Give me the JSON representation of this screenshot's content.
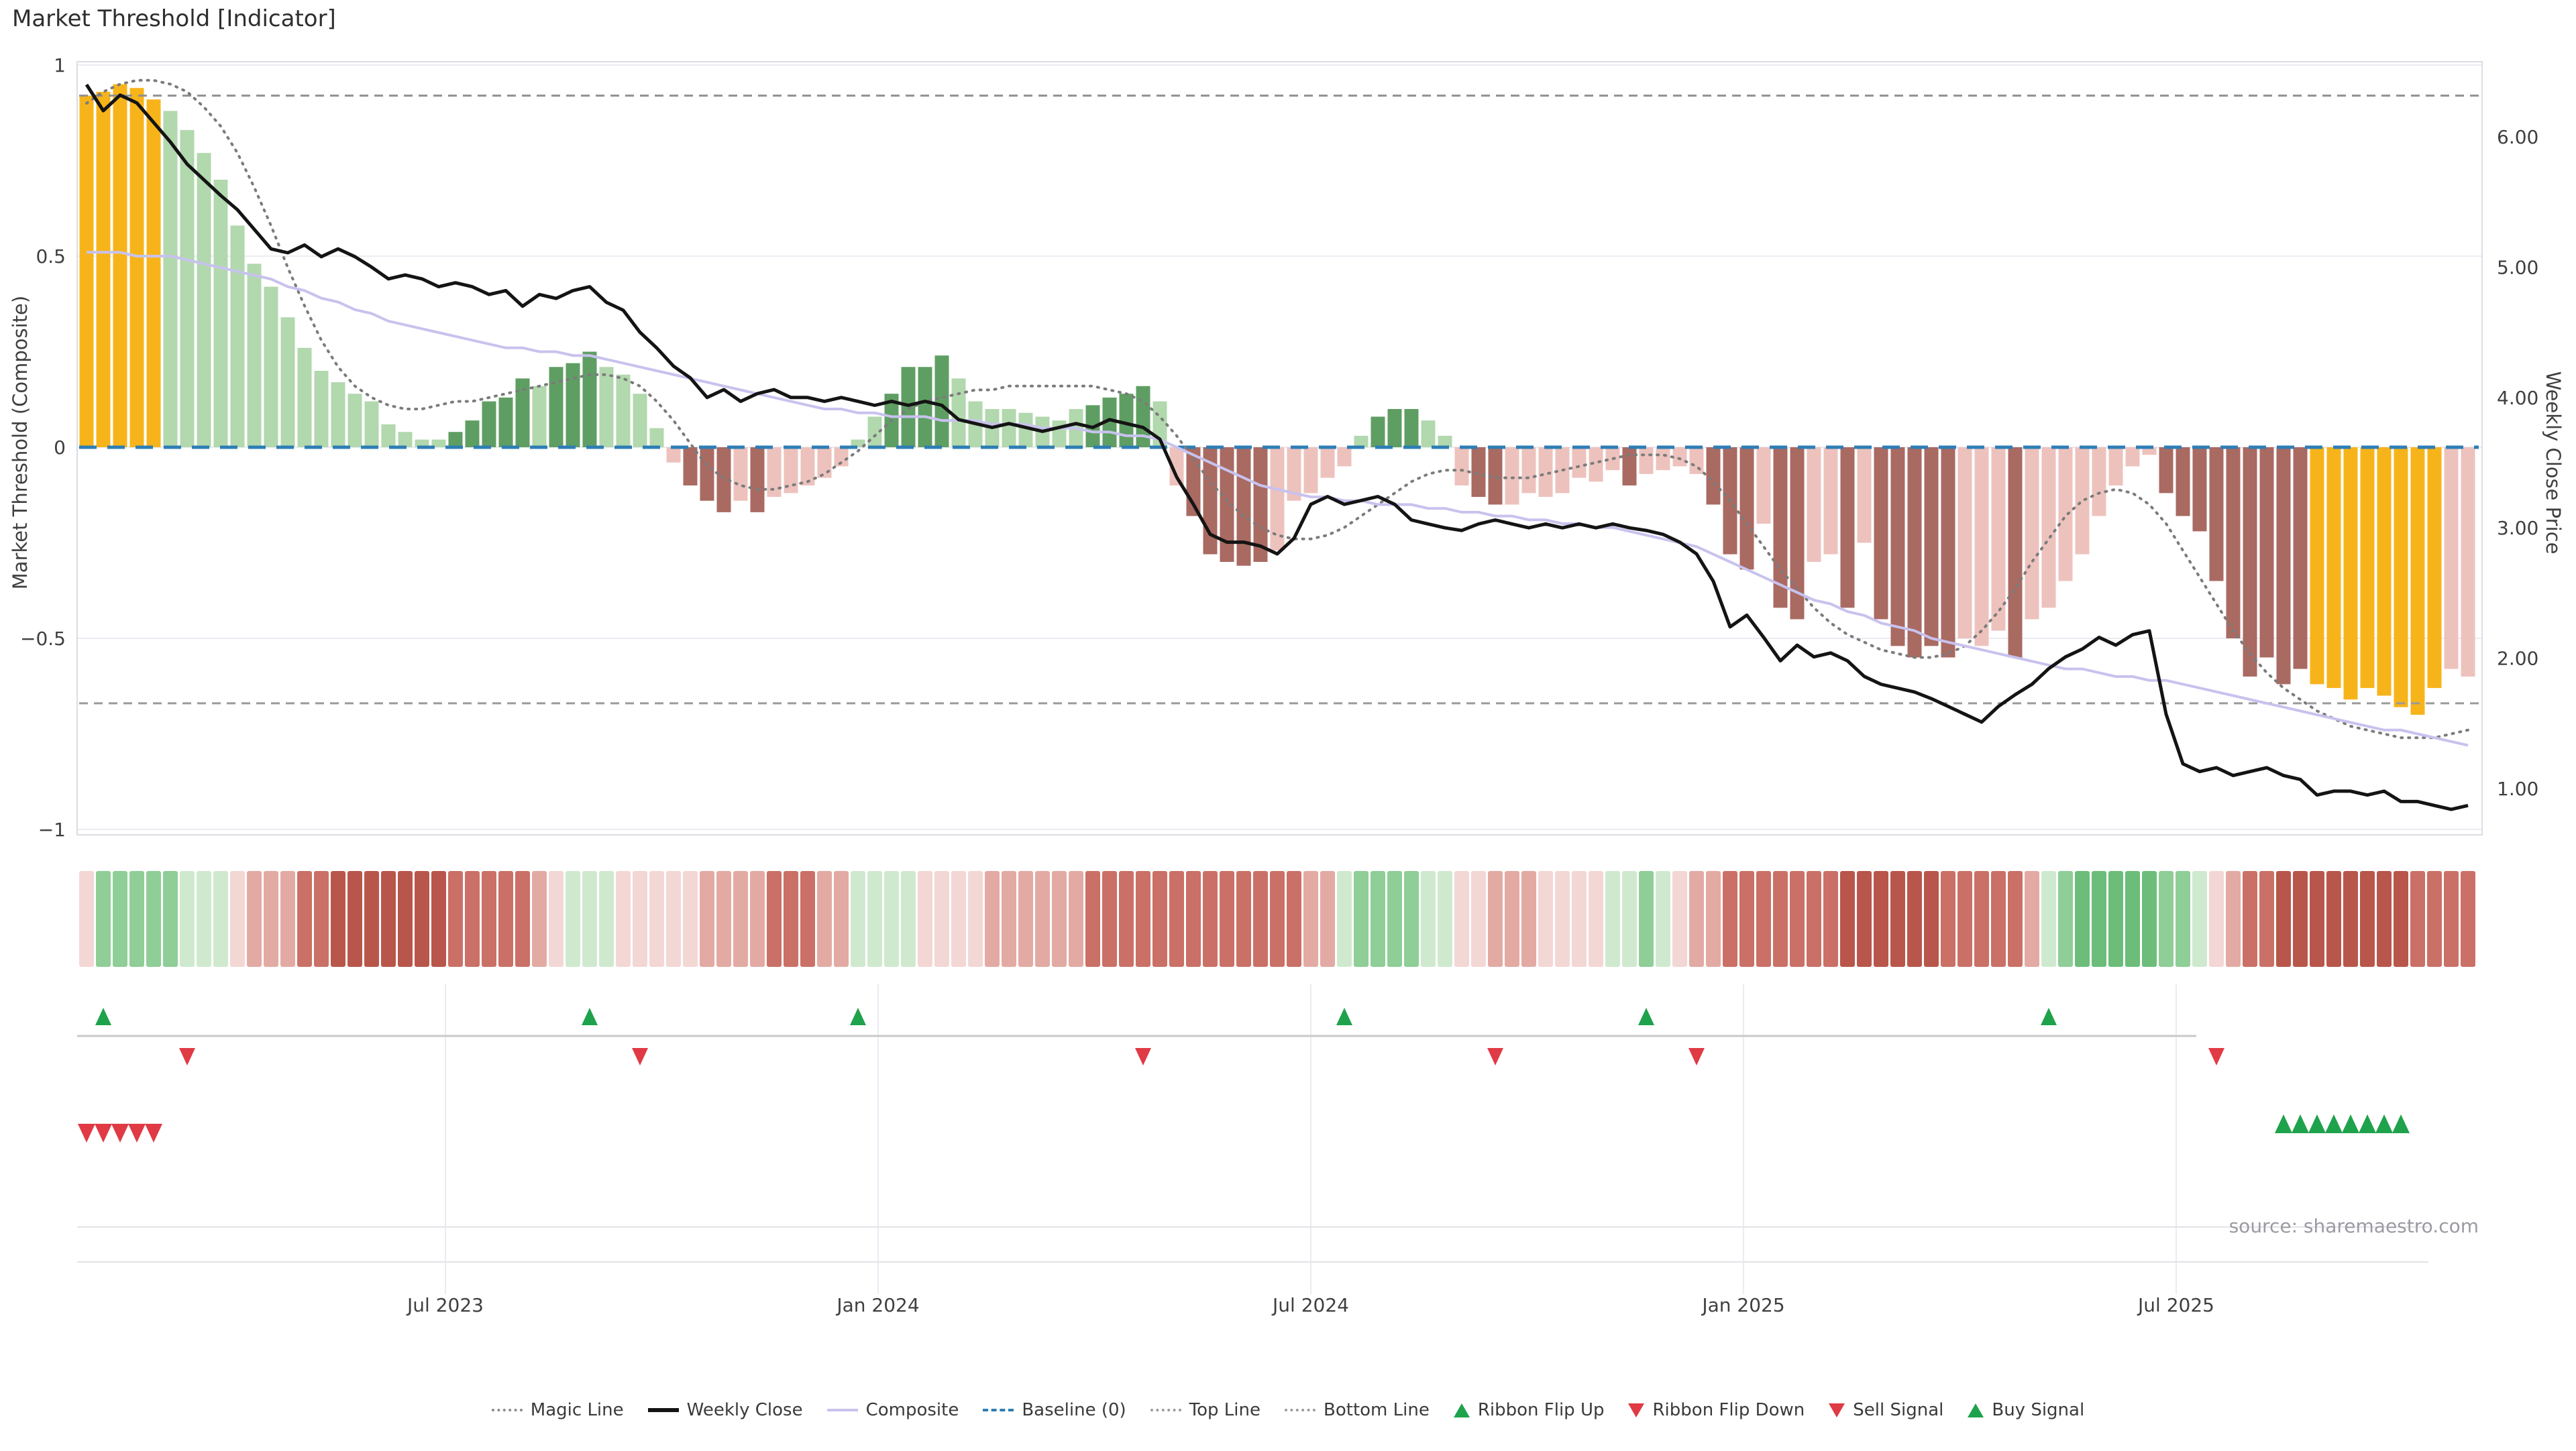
{
  "title": "Market Threshold [Indicator]",
  "source_note": "source: sharemaestro.com",
  "axes": {
    "left_title": "Market Threshold (Composite)",
    "right_title": "Weekly Close Price",
    "left_ticks": [
      {
        "label": "1",
        "v": 1
      },
      {
        "label": "0.5",
        "v": 0.5
      },
      {
        "label": "0",
        "v": 0
      },
      {
        "label": "−0.5",
        "v": -0.5
      },
      {
        "label": "−1",
        "v": -1
      }
    ],
    "right_ticks": [
      {
        "label": "6.00",
        "p": 6
      },
      {
        "label": "5.00",
        "p": 5
      },
      {
        "label": "4.00",
        "p": 4
      },
      {
        "label": "3.00",
        "p": 3
      },
      {
        "label": "2.00",
        "p": 2
      },
      {
        "label": "1.00",
        "p": 1
      }
    ],
    "x_ticks": [
      {
        "label": "Jul 2023",
        "week": 21.4
      },
      {
        "label": "Jan 2024",
        "week": 47.2
      },
      {
        "label": "Jul 2024",
        "week": 73.0
      },
      {
        "label": "Jan 2025",
        "week": 98.8
      },
      {
        "label": "Jul 2025",
        "week": 124.6
      }
    ]
  },
  "legend": [
    {
      "label": "Magic Line",
      "marker": "dotted-line",
      "color": "#8a8a8a"
    },
    {
      "label": "Weekly Close",
      "marker": "solid-line",
      "color": "#141414"
    },
    {
      "label": "Composite",
      "marker": "solid-line",
      "color": "#c8c2ee"
    },
    {
      "label": "Baseline (0)",
      "marker": "dashed-line",
      "color": "#2e7eb5"
    },
    {
      "label": "Top Line",
      "marker": "dotted-line",
      "color": "#9a9a9a"
    },
    {
      "label": "Bottom Line",
      "marker": "dotted-line",
      "color": "#9a9a9a"
    },
    {
      "label": "Ribbon Flip Up",
      "marker": "triangle-up",
      "color": "#1fa24c"
    },
    {
      "label": "Ribbon Flip Down",
      "marker": "triangle-down",
      "color": "#e03a44"
    },
    {
      "label": "Sell Signal",
      "marker": "triangle-down",
      "color": "#e03a44"
    },
    {
      "label": "Buy Signal",
      "marker": "triangle-up",
      "color": "#1fa24c"
    }
  ],
  "chart_data": {
    "type": "bar",
    "subtype": "weekly threshold bars with overlaid lines, ribbon strip and signal rows",
    "n_weeks": 143,
    "ylim_left": [
      -1,
      1
    ],
    "ylim_right_price": [
      0.7,
      6.55
    ],
    "grid": "horizontal-on-main, vertical-on-signal-panel",
    "legend_position": "bottom-center",
    "reference_lines": {
      "top_line": 0.92,
      "bottom_line": -0.67,
      "baseline": 0
    },
    "colors": {
      "bar": {
        "gold": "#f7b41a",
        "lg": "#b2d8ae",
        "dg": "#5f9e63",
        "lp": "#edc2bd",
        "dp": "#a96a62"
      },
      "ribbon": {
        "g1": "#cfe9cf",
        "g2": "#8fce97",
        "g3": "#6cbd79",
        "p1": "#f3d7d5",
        "p2": "#e3aaa4",
        "p3": "#cb7066",
        "p4": "#b9564b"
      },
      "close": "#141414",
      "composite": "#c8c2ee",
      "magic": "#7b7b7b",
      "baseline": "#2e7eb5",
      "top_line": "#909090",
      "bottom_line": "#9a9a9a",
      "grid": "#ebebf2",
      "frame": "#dcdce4",
      "signal_up": "#1fa24c",
      "signal_down": "#e03a44",
      "mid_rule": "#c9c9c9",
      "panel_rule": "#e3e3e8"
    },
    "series": {
      "threshold_bars": {
        "values": [
          0.92,
          0.93,
          0.95,
          0.94,
          0.91,
          0.88,
          0.83,
          0.77,
          0.7,
          0.58,
          0.48,
          0.42,
          0.34,
          0.26,
          0.2,
          0.17,
          0.14,
          0.12,
          0.06,
          0.04,
          0.02,
          0.02,
          0.04,
          0.07,
          0.12,
          0.13,
          0.18,
          0.16,
          0.21,
          0.22,
          0.25,
          0.21,
          0.19,
          0.14,
          0.05,
          -0.04,
          -0.1,
          -0.14,
          -0.17,
          -0.14,
          -0.17,
          -0.13,
          -0.12,
          -0.1,
          -0.08,
          -0.05,
          0.02,
          0.08,
          0.14,
          0.21,
          0.21,
          0.24,
          0.18,
          0.12,
          0.1,
          0.1,
          0.09,
          0.08,
          0.07,
          0.1,
          0.11,
          0.13,
          0.14,
          0.16,
          0.12,
          -0.1,
          -0.18,
          -0.28,
          -0.3,
          -0.31,
          -0.3,
          -0.27,
          -0.14,
          -0.12,
          -0.08,
          -0.05,
          0.03,
          0.08,
          0.1,
          0.1,
          0.07,
          0.03,
          -0.1,
          -0.13,
          -0.15,
          -0.15,
          -0.12,
          -0.13,
          -0.12,
          -0.08,
          -0.09,
          -0.06,
          -0.1,
          -0.07,
          -0.06,
          -0.05,
          -0.07,
          -0.15,
          -0.28,
          -0.32,
          -0.2,
          -0.42,
          -0.45,
          -0.3,
          -0.28,
          -0.42,
          -0.25,
          -0.45,
          -0.52,
          -0.55,
          -0.52,
          -0.55,
          -0.5,
          -0.52,
          -0.48,
          -0.55,
          -0.45,
          -0.42,
          -0.35,
          -0.28,
          -0.18,
          -0.1,
          -0.05,
          -0.02,
          -0.12,
          -0.18,
          -0.22,
          -0.35,
          -0.5,
          -0.6,
          -0.55,
          -0.62,
          -0.58,
          -0.62,
          -0.63,
          -0.66,
          -0.63,
          -0.65,
          -0.68,
          -0.7,
          -0.63,
          -0.58,
          -0.6
        ],
        "color_classes": [
          "gold",
          "gold",
          "gold",
          "gold",
          "gold",
          "lg",
          "lg",
          "lg",
          "lg",
          "lg",
          "lg",
          "lg",
          "lg",
          "lg",
          "lg",
          "lg",
          "lg",
          "lg",
          "lg",
          "lg",
          "lg",
          "lg",
          "dg",
          "dg",
          "dg",
          "dg",
          "dg",
          "lg",
          "dg",
          "dg",
          "dg",
          "lg",
          "lg",
          "lg",
          "lg",
          "lp",
          "dp",
          "dp",
          "dp",
          "lp",
          "dp",
          "lp",
          "lp",
          "lp",
          "lp",
          "lp",
          "lg",
          "lg",
          "dg",
          "dg",
          "dg",
          "dg",
          "lg",
          "lg",
          "lg",
          "lg",
          "lg",
          "lg",
          "lg",
          "lg",
          "dg",
          "dg",
          "dg",
          "dg",
          "lg",
          "lp",
          "dp",
          "dp",
          "dp",
          "dp",
          "dp",
          "lp",
          "lp",
          "lp",
          "lp",
          "lp",
          "lg",
          "dg",
          "dg",
          "dg",
          "lg",
          "lg",
          "lp",
          "dp",
          "dp",
          "lp",
          "lp",
          "lp",
          "lp",
          "lp",
          "lp",
          "lp",
          "dp",
          "lp",
          "lp",
          "lp",
          "lp",
          "dp",
          "dp",
          "dp",
          "lp",
          "dp",
          "dp",
          "lp",
          "lp",
          "dp",
          "lp",
          "dp",
          "dp",
          "dp",
          "dp",
          "dp",
          "lp",
          "lp",
          "lp",
          "dp",
          "lp",
          "lp",
          "lp",
          "lp",
          "lp",
          "lp",
          "lp",
          "lp",
          "dp",
          "dp",
          "dp",
          "dp",
          "dp",
          "dp",
          "dp",
          "dp",
          "dp",
          "gold",
          "gold",
          "gold",
          "gold",
          "gold",
          "gold",
          "gold",
          "gold",
          "lp",
          "lp"
        ]
      },
      "weekly_close": {
        "axis": "right",
        "values": [
          6.4,
          6.2,
          6.32,
          6.26,
          6.11,
          5.96,
          5.79,
          5.67,
          5.55,
          5.44,
          5.29,
          5.14,
          5.11,
          5.17,
          5.08,
          5.14,
          5.08,
          5.0,
          4.91,
          4.94,
          4.91,
          4.85,
          4.88,
          4.85,
          4.79,
          4.82,
          4.7,
          4.79,
          4.76,
          4.82,
          4.85,
          4.73,
          4.67,
          4.5,
          4.38,
          4.24,
          4.15,
          4.0,
          4.06,
          3.97,
          4.03,
          4.06,
          4.0,
          4.0,
          3.97,
          4.0,
          3.97,
          3.94,
          3.97,
          3.94,
          3.97,
          3.94,
          3.83,
          3.8,
          3.77,
          3.8,
          3.77,
          3.74,
          3.77,
          3.8,
          3.77,
          3.83,
          3.8,
          3.77,
          3.68,
          3.39,
          3.18,
          2.95,
          2.89,
          2.89,
          2.86,
          2.8,
          2.92,
          3.18,
          3.24,
          3.18,
          3.21,
          3.24,
          3.18,
          3.06,
          3.03,
          3.0,
          2.98,
          3.03,
          3.06,
          3.03,
          3.0,
          3.03,
          3.0,
          3.03,
          3.0,
          3.03,
          3.0,
          2.98,
          2.95,
          2.89,
          2.8,
          2.59,
          2.24,
          2.33,
          2.16,
          1.98,
          2.1,
          2.01,
          2.04,
          1.98,
          1.86,
          1.8,
          1.77,
          1.74,
          1.69,
          1.63,
          1.57,
          1.51,
          1.63,
          1.72,
          1.8,
          1.92,
          2.01,
          2.07,
          2.16,
          2.1,
          2.18,
          2.21,
          1.57,
          1.19,
          1.13,
          1.16,
          1.1,
          1.13,
          1.16,
          1.1,
          1.07,
          0.95,
          0.98,
          0.98,
          0.95,
          0.98,
          0.9,
          0.9,
          0.87,
          0.84,
          0.87
        ]
      },
      "composite": {
        "axis": "left",
        "values": [
          0.51,
          0.51,
          0.51,
          0.5,
          0.5,
          0.5,
          0.49,
          0.48,
          0.47,
          0.46,
          0.45,
          0.44,
          0.42,
          0.41,
          0.39,
          0.38,
          0.36,
          0.35,
          0.33,
          0.32,
          0.31,
          0.3,
          0.29,
          0.28,
          0.27,
          0.26,
          0.26,
          0.25,
          0.25,
          0.24,
          0.24,
          0.23,
          0.22,
          0.21,
          0.2,
          0.19,
          0.18,
          0.17,
          0.16,
          0.15,
          0.14,
          0.13,
          0.12,
          0.11,
          0.1,
          0.1,
          0.09,
          0.09,
          0.08,
          0.08,
          0.08,
          0.07,
          0.07,
          0.07,
          0.06,
          0.06,
          0.06,
          0.05,
          0.05,
          0.05,
          0.04,
          0.04,
          0.03,
          0.03,
          0.02,
          0.0,
          -0.02,
          -0.04,
          -0.06,
          -0.08,
          -0.1,
          -0.11,
          -0.12,
          -0.13,
          -0.13,
          -0.14,
          -0.14,
          -0.15,
          -0.15,
          -0.15,
          -0.16,
          -0.16,
          -0.17,
          -0.17,
          -0.18,
          -0.18,
          -0.19,
          -0.19,
          -0.2,
          -0.2,
          -0.21,
          -0.21,
          -0.22,
          -0.23,
          -0.24,
          -0.25,
          -0.26,
          -0.28,
          -0.3,
          -0.32,
          -0.34,
          -0.36,
          -0.38,
          -0.4,
          -0.41,
          -0.43,
          -0.44,
          -0.46,
          -0.47,
          -0.48,
          -0.5,
          -0.51,
          -0.52,
          -0.53,
          -0.54,
          -0.55,
          -0.56,
          -0.57,
          -0.58,
          -0.58,
          -0.59,
          -0.6,
          -0.6,
          -0.61,
          -0.61,
          -0.62,
          -0.63,
          -0.64,
          -0.65,
          -0.66,
          -0.67,
          -0.68,
          -0.69,
          -0.7,
          -0.71,
          -0.72,
          -0.73,
          -0.74,
          -0.74,
          -0.75,
          -0.76,
          -0.77,
          -0.78
        ]
      },
      "magic_line": {
        "axis": "left",
        "values": [
          0.9,
          0.93,
          0.95,
          0.96,
          0.96,
          0.95,
          0.93,
          0.89,
          0.84,
          0.77,
          0.68,
          0.58,
          0.47,
          0.37,
          0.28,
          0.21,
          0.16,
          0.13,
          0.11,
          0.1,
          0.1,
          0.11,
          0.12,
          0.12,
          0.13,
          0.14,
          0.15,
          0.16,
          0.17,
          0.18,
          0.19,
          0.19,
          0.18,
          0.16,
          0.12,
          0.07,
          0.01,
          -0.05,
          -0.08,
          -0.1,
          -0.11,
          -0.11,
          -0.1,
          -0.09,
          -0.07,
          -0.04,
          -0.01,
          0.03,
          0.07,
          0.1,
          0.12,
          0.13,
          0.14,
          0.15,
          0.15,
          0.16,
          0.16,
          0.16,
          0.16,
          0.16,
          0.16,
          0.15,
          0.14,
          0.12,
          0.08,
          0.03,
          -0.03,
          -0.09,
          -0.14,
          -0.18,
          -0.21,
          -0.23,
          -0.24,
          -0.24,
          -0.23,
          -0.21,
          -0.18,
          -0.15,
          -0.12,
          -0.09,
          -0.07,
          -0.06,
          -0.06,
          -0.07,
          -0.08,
          -0.08,
          -0.08,
          -0.07,
          -0.06,
          -0.05,
          -0.04,
          -0.03,
          -0.02,
          -0.02,
          -0.02,
          -0.03,
          -0.05,
          -0.09,
          -0.14,
          -0.2,
          -0.26,
          -0.32,
          -0.37,
          -0.42,
          -0.46,
          -0.49,
          -0.51,
          -0.53,
          -0.54,
          -0.55,
          -0.55,
          -0.54,
          -0.52,
          -0.48,
          -0.43,
          -0.37,
          -0.3,
          -0.24,
          -0.18,
          -0.14,
          -0.12,
          -0.11,
          -0.12,
          -0.15,
          -0.2,
          -0.27,
          -0.34,
          -0.41,
          -0.48,
          -0.54,
          -0.59,
          -0.63,
          -0.66,
          -0.69,
          -0.71,
          -0.73,
          -0.74,
          -0.75,
          -0.76,
          -0.76,
          -0.76,
          -0.75,
          -0.74
        ]
      }
    },
    "ribbon": [
      "p1",
      "g2",
      "g2",
      "g2",
      "g2",
      "g2",
      "g1",
      "g1",
      "g1",
      "p1",
      "p2",
      "p2",
      "p2",
      "p3",
      "p3",
      "p4",
      "p4",
      "p4",
      "p4",
      "p4",
      "p4",
      "p4",
      "p3",
      "p3",
      "p3",
      "p3",
      "p3",
      "p2",
      "p1",
      "g1",
      "g1",
      "g1",
      "p1",
      "p1",
      "p1",
      "p1",
      "p1",
      "p2",
      "p2",
      "p2",
      "p2",
      "p3",
      "p3",
      "p3",
      "p2",
      "p2",
      "g1",
      "g1",
      "g1",
      "g1",
      "p1",
      "p1",
      "p1",
      "p1",
      "p2",
      "p2",
      "p2",
      "p2",
      "p2",
      "p2",
      "p3",
      "p3",
      "p3",
      "p3",
      "p3",
      "p3",
      "p3",
      "p3",
      "p3",
      "p3",
      "p3",
      "p3",
      "p3",
      "p2",
      "p2",
      "g1",
      "g2",
      "g2",
      "g2",
      "g2",
      "g1",
      "g1",
      "p1",
      "p1",
      "p2",
      "p2",
      "p2",
      "p1",
      "p1",
      "p1",
      "p1",
      "g1",
      "g1",
      "g2",
      "g1",
      "p1",
      "p2",
      "p2",
      "p3",
      "p3",
      "p3",
      "p3",
      "p3",
      "p3",
      "p3",
      "p4",
      "p4",
      "p4",
      "p4",
      "p4",
      "p4",
      "p3",
      "p3",
      "p3",
      "p3",
      "p3",
      "p2",
      "g1",
      "g2",
      "g3",
      "g3",
      "g3",
      "g3",
      "g3",
      "g2",
      "g2",
      "g1",
      "p1",
      "p2",
      "p3",
      "p3",
      "p4",
      "p4",
      "p4",
      "p4",
      "p4",
      "p4",
      "p4",
      "p4",
      "p3",
      "p3",
      "p3",
      "p3"
    ],
    "signals": {
      "flip_up_weeks": [
        1,
        30,
        46,
        75,
        93,
        117
      ],
      "flip_down_weeks": [
        6,
        33,
        63,
        84,
        96,
        127
      ],
      "sell_weeks": [
        0,
        1,
        2,
        3,
        4
      ],
      "buy_weeks": [
        131,
        132,
        133,
        134,
        135,
        136,
        137,
        138
      ]
    }
  }
}
